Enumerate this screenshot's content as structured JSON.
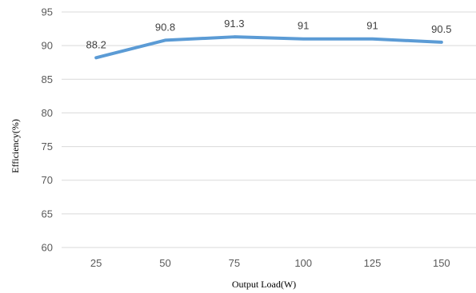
{
  "chart_data": {
    "type": "line",
    "categories": [
      "25",
      "50",
      "75",
      "100",
      "125",
      "150"
    ],
    "series": [
      {
        "values": [
          88.2,
          90.8,
          91.3,
          91,
          91,
          90.5
        ],
        "data_labels": [
          "88.2",
          "90.8",
          "91.3",
          "91",
          "91",
          "90.5"
        ],
        "color": "#5b9bd5"
      }
    ],
    "xlabel": "Output Load(W)",
    "ylabel": "Efficiency(%)",
    "ylim": [
      60,
      95
    ],
    "yticks": [
      60,
      65,
      70,
      75,
      80,
      85,
      90,
      95
    ],
    "grid": true,
    "gridline_color": "#d9d9d9",
    "legend": false
  }
}
